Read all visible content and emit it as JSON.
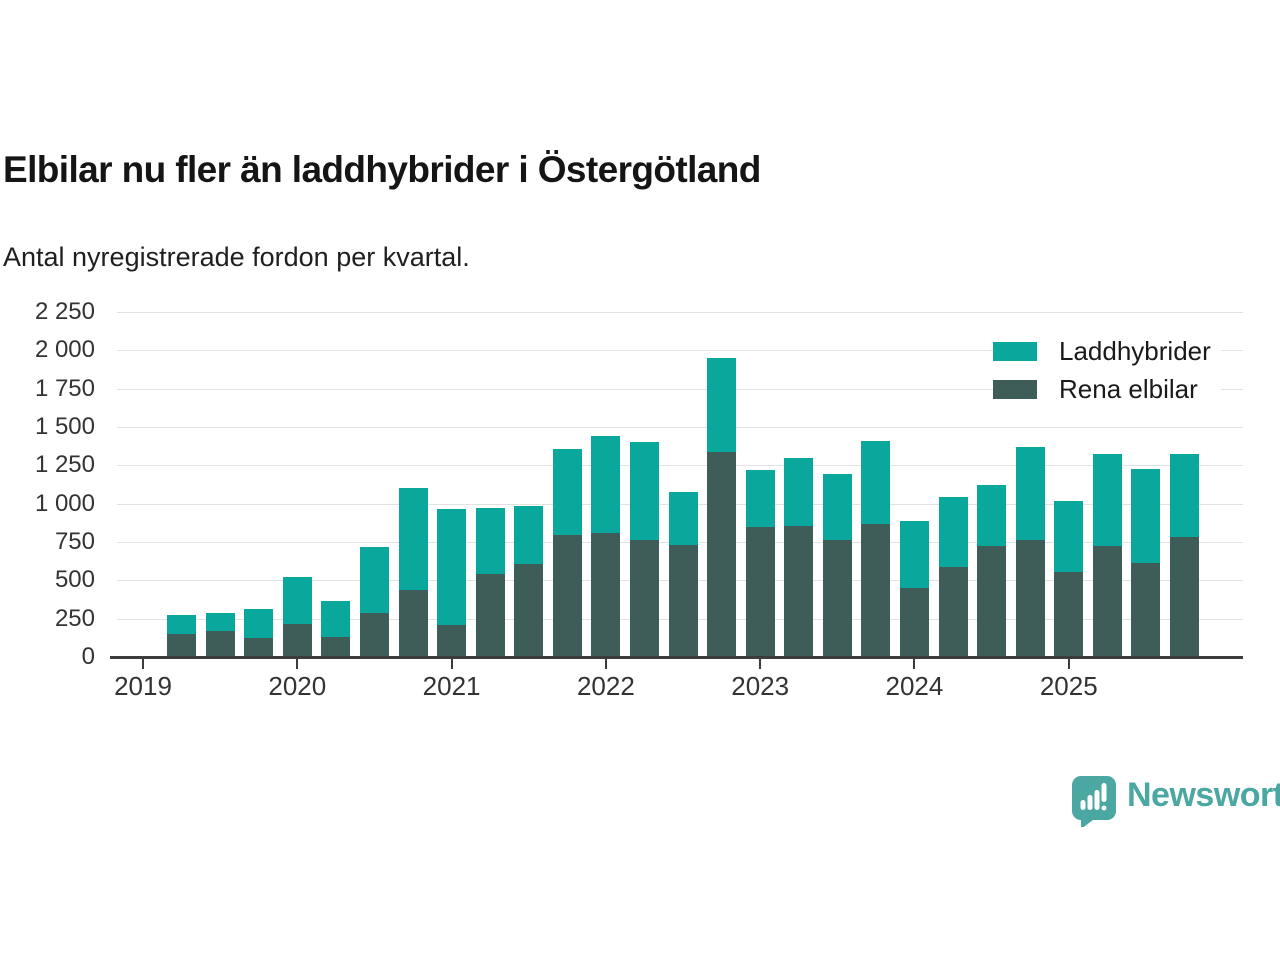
{
  "header": {
    "title": "Elbilar nu fler än laddhybrider i Östergötland",
    "subtitle": "Antal nyregistrerade fordon per kvartal."
  },
  "legend": {
    "items": [
      {
        "label": "Laddhybrider",
        "color": "#0aa79c"
      },
      {
        "label": "Rena elbilar",
        "color": "#3e5c58"
      }
    ]
  },
  "brand": {
    "name": "Newsworthy",
    "icon": "newsworthy-chart-speech-bubble-icon",
    "color": "#4ba7a1"
  },
  "colors": {
    "laddhybrider": "#0aa79c",
    "rena_elbilar": "#3e5c58",
    "gridline": "#e2e2e2",
    "axis": "#3c3c3c",
    "text": "#1a1a1a",
    "brand": "#4ba7a1"
  },
  "chart_data": {
    "type": "bar",
    "stacked": true,
    "title": "Elbilar nu fler än laddhybrider i Östergötland",
    "subtitle": "Antal nyregistrerade fordon per kvartal.",
    "grid": true,
    "legend_position": "top-right",
    "categories": [
      "2019 Q2",
      "2019 Q3",
      "2019 Q4",
      "2020 Q1",
      "2020 Q2",
      "2020 Q3",
      "2020 Q4",
      "2021 Q1",
      "2021 Q2",
      "2021 Q3",
      "2021 Q4",
      "2022 Q1",
      "2022 Q2",
      "2022 Q3",
      "2022 Q4",
      "2023 Q1",
      "2023 Q2",
      "2023 Q3",
      "2023 Q4",
      "2024 Q1",
      "2024 Q2",
      "2024 Q3",
      "2024 Q4",
      "2025 Q1",
      "2025 Q2",
      "2025 Q3",
      "2025 Q4"
    ],
    "series": [
      {
        "name": "Rena elbilar",
        "color": "#3e5c58",
        "values": [
          150,
          170,
          125,
          215,
          130,
          290,
          440,
          210,
          540,
          605,
          795,
          810,
          765,
          730,
          1335,
          850,
          855,
          760,
          870,
          450,
          590,
          725,
          765,
          555,
          725,
          615,
          785
        ]
      },
      {
        "name": "Laddhybrider",
        "color": "#0aa79c",
        "values": [
          125,
          120,
          185,
          305,
          235,
          430,
          660,
          755,
          430,
          380,
          560,
          630,
          640,
          345,
          615,
          370,
          445,
          435,
          540,
          440,
          455,
          400,
          605,
          460,
          600,
          610,
          540
        ]
      }
    ],
    "x_tick_labels": [
      "2019",
      "2020",
      "2021",
      "2022",
      "2023",
      "2024",
      "2025"
    ],
    "y_tick_values": [
      0,
      250,
      500,
      750,
      1000,
      1250,
      1500,
      1750,
      2000,
      2250
    ],
    "y_tick_labels": [
      "0",
      "250",
      "500",
      "750",
      "1 000",
      "1 250",
      "1 500",
      "1 750",
      "2 000",
      "2 250"
    ],
    "ylim": [
      0,
      2350
    ]
  }
}
